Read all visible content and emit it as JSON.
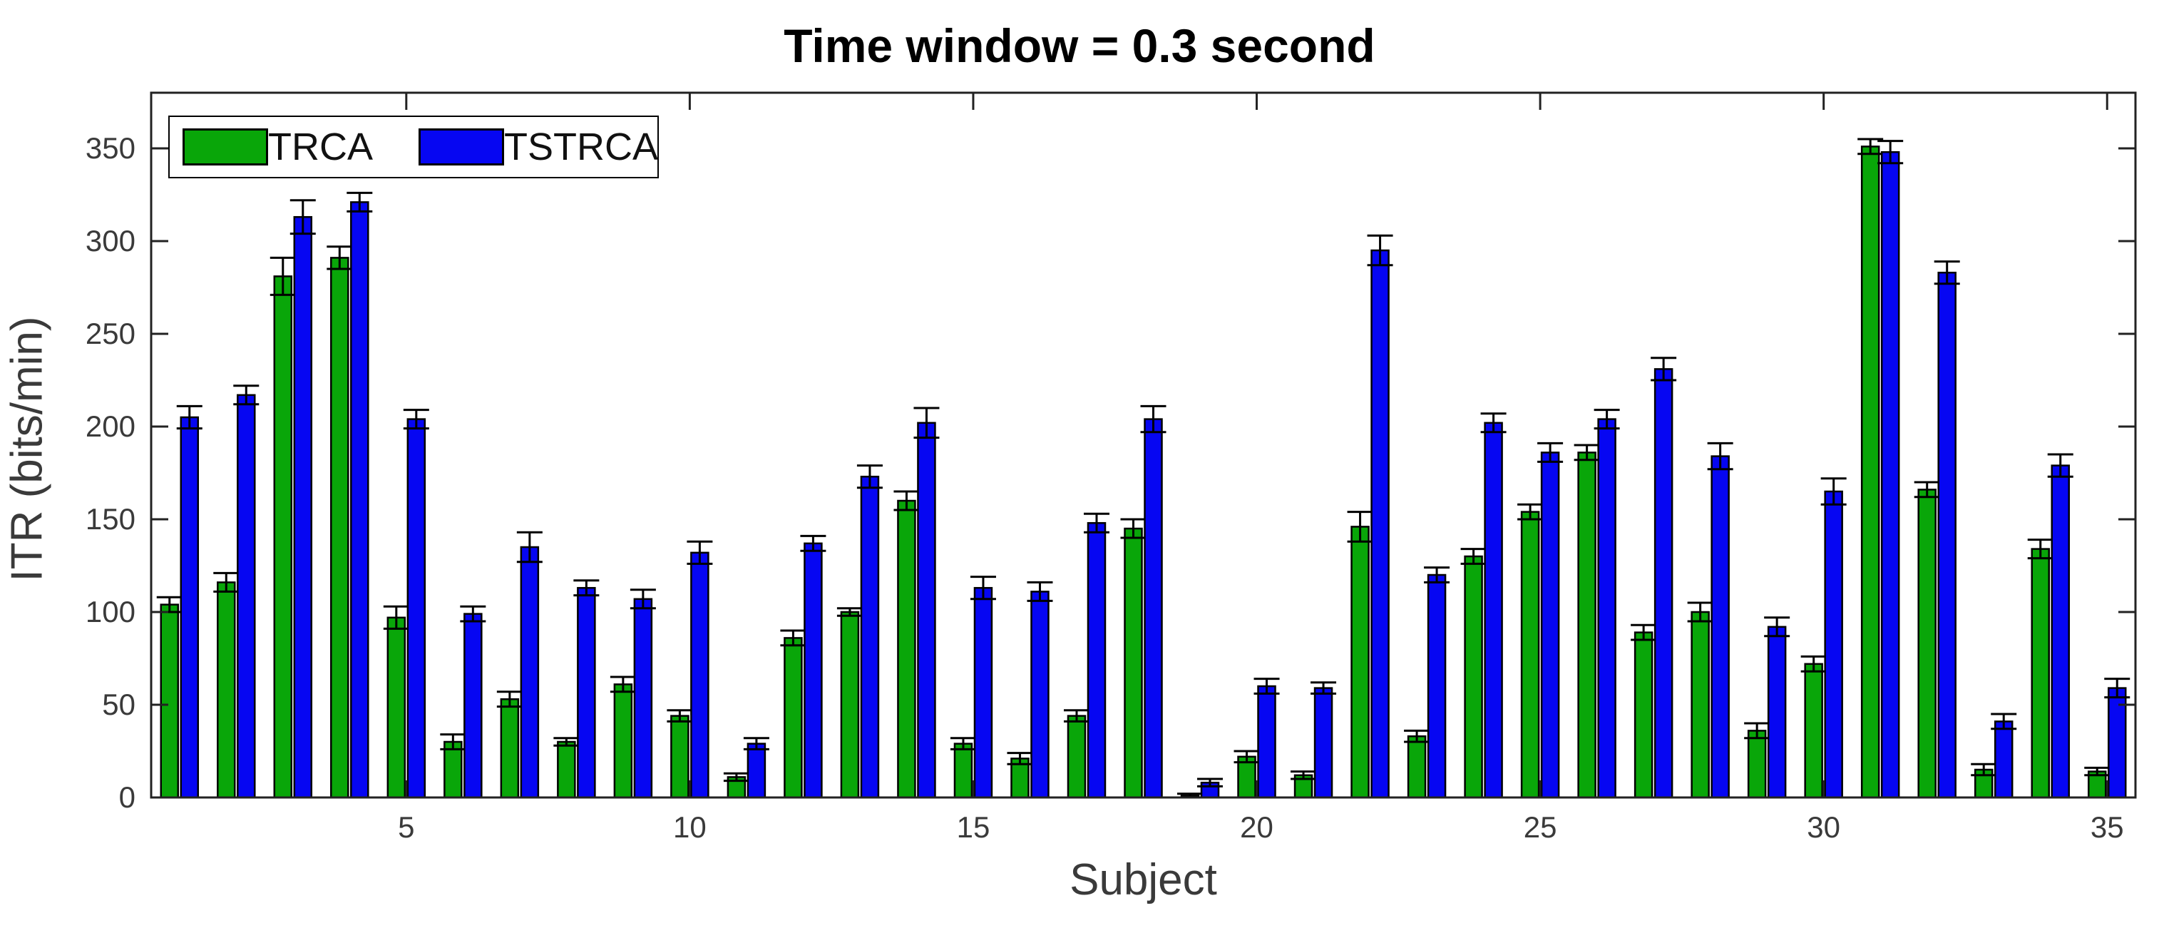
{
  "title": "Time window = 0.3 second",
  "axes": {
    "xlabel": "Subject",
    "ylabel": "ITR (bits/min)",
    "yticks": [
      0,
      50,
      100,
      150,
      200,
      250,
      300,
      350
    ],
    "xticks": [
      5,
      10,
      15,
      20,
      25,
      30,
      35
    ],
    "ylim": [
      0,
      380
    ]
  },
  "legend": {
    "items": [
      {
        "label": "TRCA",
        "color": "#09a609"
      },
      {
        "label": "TSTRCA",
        "color": "#0606f2"
      }
    ],
    "position": "top-left"
  },
  "colors": {
    "trca_green": "#09a609",
    "tstrca_blue": "#0606f2",
    "axis": "#222222",
    "tick_label": "#3a3a3a",
    "error_bar": "#000000"
  },
  "chart_data": {
    "type": "bar",
    "title": "Time window = 0.3 second",
    "xlabel": "Subject",
    "ylabel": "ITR (bits/min)",
    "ylim": [
      0,
      380
    ],
    "grid": false,
    "legend_position": "top-left",
    "categories": [
      1,
      2,
      3,
      4,
      5,
      6,
      7,
      8,
      9,
      10,
      11,
      12,
      13,
      14,
      15,
      16,
      17,
      18,
      19,
      20,
      21,
      22,
      23,
      24,
      25,
      26,
      27,
      28,
      29,
      30,
      31,
      32,
      33,
      34,
      35
    ],
    "series": [
      {
        "name": "TRCA",
        "color": "#09a609",
        "values": [
          104,
          116,
          281,
          291,
          97,
          30,
          53,
          30,
          61,
          44,
          11,
          86,
          100,
          160,
          29,
          21,
          44,
          145,
          1,
          22,
          12,
          146,
          33,
          130,
          154,
          186,
          89,
          100,
          36,
          72,
          351,
          166,
          15,
          134,
          14
        ],
        "errors": [
          4,
          5,
          10,
          6,
          6,
          4,
          4,
          2,
          4,
          3,
          2,
          4,
          2,
          5,
          3,
          3,
          3,
          5,
          1,
          3,
          2,
          8,
          3,
          4,
          4,
          4,
          4,
          5,
          4,
          4,
          4,
          4,
          3,
          5,
          2
        ]
      },
      {
        "name": "TSTRCA",
        "color": "#0606f2",
        "values": [
          205,
          217,
          313,
          321,
          204,
          99,
          135,
          113,
          107,
          132,
          29,
          137,
          173,
          202,
          113,
          111,
          148,
          204,
          8,
          60,
          59,
          295,
          120,
          202,
          186,
          204,
          231,
          184,
          92,
          165,
          348,
          283,
          41,
          179,
          59
        ],
        "errors": [
          6,
          5,
          9,
          5,
          5,
          4,
          8,
          4,
          5,
          6,
          3,
          4,
          6,
          8,
          6,
          5,
          5,
          7,
          2,
          4,
          3,
          8,
          4,
          5,
          5,
          5,
          6,
          7,
          5,
          7,
          6,
          6,
          4,
          6,
          5
        ]
      }
    ]
  }
}
